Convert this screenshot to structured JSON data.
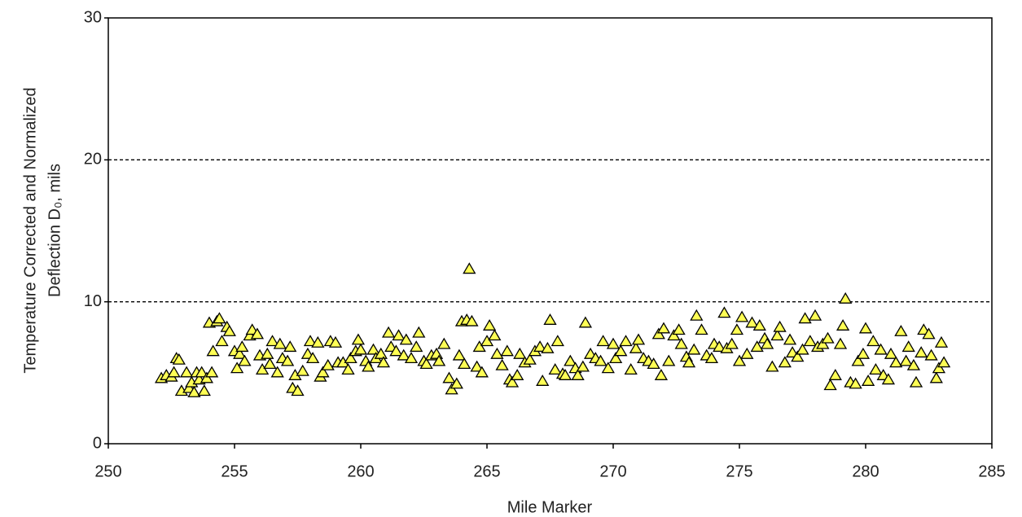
{
  "chart_data": {
    "type": "scatter",
    "xlabel": "Mile Marker",
    "ylabel": [
      "Temperature Corrected and Normalized",
      "Deflection D₀, mils"
    ],
    "xlim": [
      250,
      285
    ],
    "xticks": [
      250,
      255,
      260,
      265,
      270,
      275,
      280,
      285
    ],
    "ylim": [
      0,
      30
    ],
    "yticks": [
      0,
      10,
      20,
      30
    ],
    "grid": true,
    "marker": "triangle",
    "color": "#ffff55",
    "x": [
      252.1,
      252.3,
      252.5,
      252.6,
      252.7,
      252.8,
      252.9,
      253.1,
      253.2,
      253.3,
      253.4,
      253.5,
      253.6,
      253.7,
      253.8,
      253.9,
      254.0,
      254.1,
      254.15,
      254.3,
      254.4,
      254.5,
      254.7,
      254.8,
      255.0,
      255.1,
      255.2,
      255.3,
      255.4,
      255.6,
      255.7,
      255.9,
      256.0,
      256.1,
      256.3,
      256.4,
      256.5,
      256.7,
      256.8,
      256.9,
      257.1,
      257.2,
      257.3,
      257.4,
      257.5,
      257.7,
      257.9,
      258.0,
      258.1,
      258.3,
      258.4,
      258.5,
      258.7,
      258.8,
      259.0,
      259.1,
      259.3,
      259.5,
      259.6,
      259.8,
      259.9,
      260.0,
      260.2,
      260.3,
      260.5,
      260.6,
      260.8,
      260.9,
      261.1,
      261.2,
      261.4,
      261.5,
      261.7,
      261.8,
      262.0,
      262.2,
      262.3,
      262.5,
      262.6,
      262.8,
      263.0,
      263.1,
      263.3,
      263.5,
      263.6,
      263.8,
      263.9,
      264.0,
      264.1,
      264.2,
      264.3,
      264.4,
      264.6,
      264.7,
      264.8,
      265.0,
      265.1,
      265.3,
      265.4,
      265.6,
      265.8,
      265.9,
      266.0,
      266.2,
      266.3,
      266.5,
      266.7,
      266.9,
      267.1,
      267.2,
      267.4,
      267.5,
      267.7,
      267.8,
      268.0,
      268.1,
      268.3,
      268.5,
      268.6,
      268.8,
      268.9,
      269.1,
      269.3,
      269.5,
      269.6,
      269.8,
      270.0,
      270.1,
      270.3,
      270.5,
      270.7,
      270.9,
      271.0,
      271.2,
      271.4,
      271.6,
      271.8,
      271.9,
      272.0,
      272.2,
      272.4,
      272.6,
      272.7,
      272.9,
      273.0,
      273.2,
      273.3,
      273.5,
      273.7,
      273.9,
      274.0,
      274.2,
      274.4,
      274.5,
      274.7,
      274.9,
      275.0,
      275.1,
      275.3,
      275.5,
      275.7,
      275.8,
      276.0,
      276.1,
      276.3,
      276.5,
      276.6,
      276.8,
      277.0,
      277.1,
      277.3,
      277.5,
      277.6,
      277.8,
      278.0,
      278.1,
      278.3,
      278.5,
      278.6,
      278.8,
      279.0,
      279.1,
      279.2,
      279.4,
      279.6,
      279.7,
      279.9,
      280.0,
      280.1,
      280.3,
      280.4,
      280.6,
      280.7,
      280.9,
      281.0,
      281.2,
      281.4,
      281.6,
      281.7,
      281.9,
      282.0,
      282.2,
      282.3,
      282.5,
      282.6,
      282.8,
      282.9,
      283.0,
      283.1
    ],
    "values": [
      4.6,
      4.8,
      4.7,
      5.0,
      6.0,
      5.9,
      3.7,
      5.0,
      3.9,
      4.3,
      3.6,
      5.0,
      4.5,
      5.0,
      3.7,
      4.6,
      8.5,
      5.0,
      6.5,
      8.6,
      8.8,
      7.2,
      8.2,
      7.9,
      6.5,
      5.3,
      6.3,
      6.8,
      5.8,
      7.6,
      8.0,
      7.7,
      6.2,
      5.2,
      6.3,
      5.6,
      7.2,
      5.0,
      7.0,
      6.0,
      5.8,
      6.8,
      3.9,
      4.8,
      3.7,
      5.1,
      6.3,
      7.2,
      6.0,
      7.1,
      4.7,
      5.0,
      5.5,
      7.2,
      7.1,
      5.7,
      5.7,
      5.2,
      6.0,
      6.5,
      7.3,
      6.6,
      5.8,
      5.4,
      6.6,
      6.0,
      6.3,
      5.7,
      7.8,
      6.8,
      6.5,
      7.6,
      6.2,
      7.3,
      6.0,
      6.8,
      7.8,
      5.8,
      5.6,
      6.2,
      6.3,
      5.8,
      7.0,
      4.6,
      3.8,
      4.2,
      6.2,
      8.6,
      5.6,
      8.7,
      12.3,
      8.6,
      5.4,
      6.8,
      5.0,
      7.2,
      8.3,
      7.6,
      6.3,
      5.5,
      6.5,
      4.5,
      4.3,
      4.8,
      6.3,
      5.7,
      5.9,
      6.5,
      6.8,
      4.4,
      6.7,
      8.7,
      5.2,
      7.2,
      4.9,
      4.8,
      5.8,
      5.3,
      4.8,
      5.4,
      8.5,
      6.3,
      6.0,
      5.8,
      7.2,
      5.3,
      7.0,
      6.0,
      6.5,
      7.2,
      5.2,
      6.7,
      7.3,
      6.0,
      5.8,
      5.6,
      7.7,
      4.8,
      8.1,
      5.8,
      7.6,
      8.0,
      7.0,
      6.1,
      5.7,
      6.6,
      9.0,
      8.0,
      6.2,
      6.0,
      7.0,
      6.8,
      9.2,
      6.7,
      7.0,
      8.0,
      5.8,
      8.9,
      6.3,
      8.5,
      6.8,
      8.3,
      7.4,
      7.0,
      5.4,
      7.6,
      8.2,
      5.7,
      7.3,
      6.4,
      6.1,
      6.6,
      8.8,
      7.2,
      9.0,
      6.8,
      7.0,
      7.4,
      4.1,
      4.8,
      7.0,
      8.3,
      10.2,
      4.3,
      4.2,
      5.8,
      6.3,
      8.1,
      4.4,
      7.2,
      5.2,
      6.6,
      4.8,
      4.5,
      6.3,
      5.7,
      7.9,
      5.8,
      6.8,
      5.5,
      4.3,
      6.4,
      8.0,
      7.7,
      6.2,
      4.6,
      5.3,
      7.1,
      5.7
    ]
  }
}
